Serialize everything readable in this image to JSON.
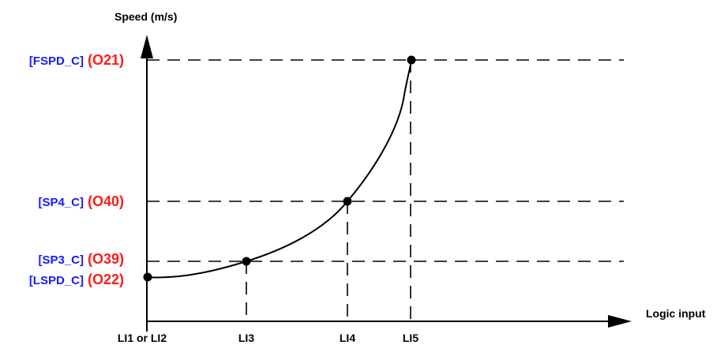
{
  "y_axis_title": "Speed (m/s)",
  "x_axis_title": "Logic input",
  "speed_levels": [
    {
      "param": "[FSPD_C]",
      "code": "(O21)"
    },
    {
      "param": "[SP4_C]",
      "code": "(O40)"
    },
    {
      "param": "[SP3_C]",
      "code": "(O39)"
    },
    {
      "param": "[LSPD_C]",
      "code": "(O22)"
    }
  ],
  "inputs": [
    "LI1 or LI2",
    "LI3",
    "LI4",
    "LI5"
  ],
  "colors": {
    "param": "#1a1aff",
    "code": "#ff1a1a",
    "lines": "#000000"
  }
}
